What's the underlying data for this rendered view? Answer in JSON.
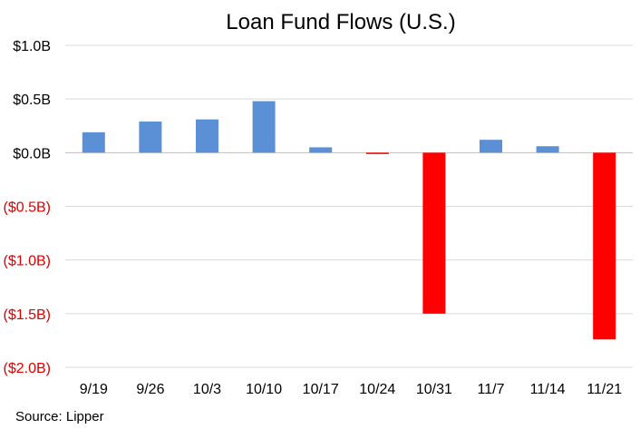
{
  "chart_data": {
    "type": "bar",
    "title": "Loan Fund Flows (U.S.)",
    "categories": [
      "9/19",
      "9/26",
      "10/3",
      "10/10",
      "10/17",
      "10/24",
      "10/31",
      "11/7",
      "11/14",
      "11/21"
    ],
    "values": [
      0.19,
      0.29,
      0.31,
      0.48,
      0.05,
      -0.01,
      -1.5,
      0.12,
      0.06,
      -1.74
    ],
    "y_unit": "$B",
    "ylim": [
      -2.0,
      1.0
    ],
    "y_ticks": [
      {
        "value": 1.0,
        "label": "$1.0B"
      },
      {
        "value": 0.5,
        "label": "$0.5B"
      },
      {
        "value": 0.0,
        "label": "$0.0B"
      },
      {
        "value": -0.5,
        "label": "($0.5B)"
      },
      {
        "value": -1.0,
        "label": "($1.0B)"
      },
      {
        "value": -1.5,
        "label": "($1.5B)"
      },
      {
        "value": -2.0,
        "label": "($2.0B)"
      }
    ],
    "xlabel": "",
    "ylabel": "",
    "grid": true,
    "legend": "none",
    "colors": {
      "positive_bar": "#5B8FD6",
      "negative_bar": "#FF0000",
      "positive_tick": "#000000",
      "negative_tick": "#E00000",
      "grid": "#D9D9D9"
    }
  },
  "source_text": "Source: Lipper"
}
